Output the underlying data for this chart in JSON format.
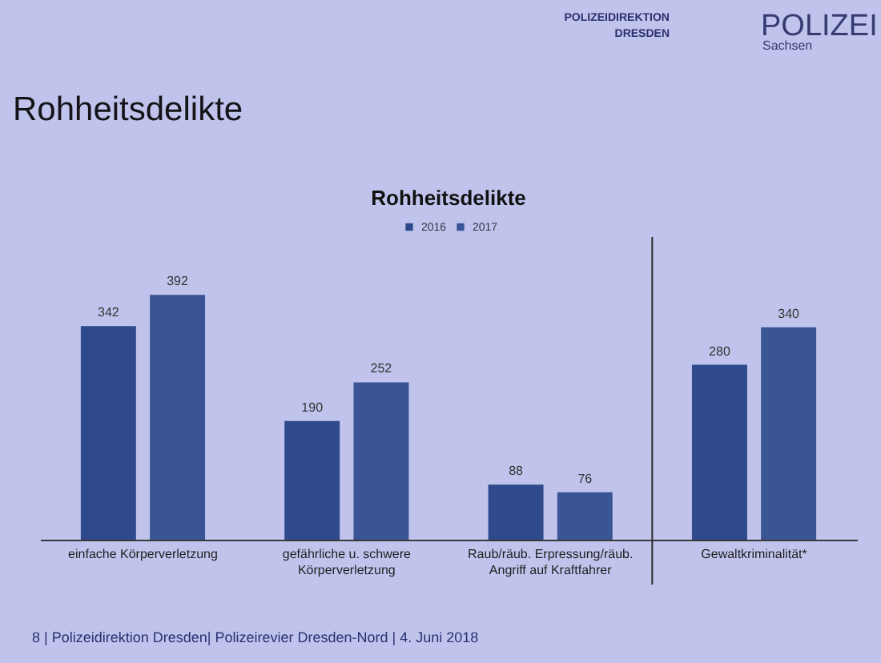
{
  "chart_data": {
    "type": "bar",
    "title": "Rohheitsdelikte",
    "categories": [
      "einfache Körperverletzung",
      "gefährliche u. schwere Körperverletzung",
      "Raub/räub. Erpressung/räub. Angriff auf Kraftfahrer",
      "Gewaltkriminalität*"
    ],
    "series": [
      {
        "name": "2016",
        "color": "#2e4a8c",
        "values": [
          342,
          190,
          88,
          280
        ]
      },
      {
        "name": "2017",
        "color": "#3a5596",
        "values": [
          392,
          252,
          76,
          340
        ]
      }
    ],
    "data_labels": true,
    "legend": "top",
    "annotations": [
      "POLIZEIDIREKTION DRESDEN",
      "POLIZEI",
      "Sachsen",
      "Rohheitsdelikte",
      "8 | Polizeidirektion Dresden| Polizeirevier Dresden-Nord | 4. Juni 2018"
    ]
  }
}
